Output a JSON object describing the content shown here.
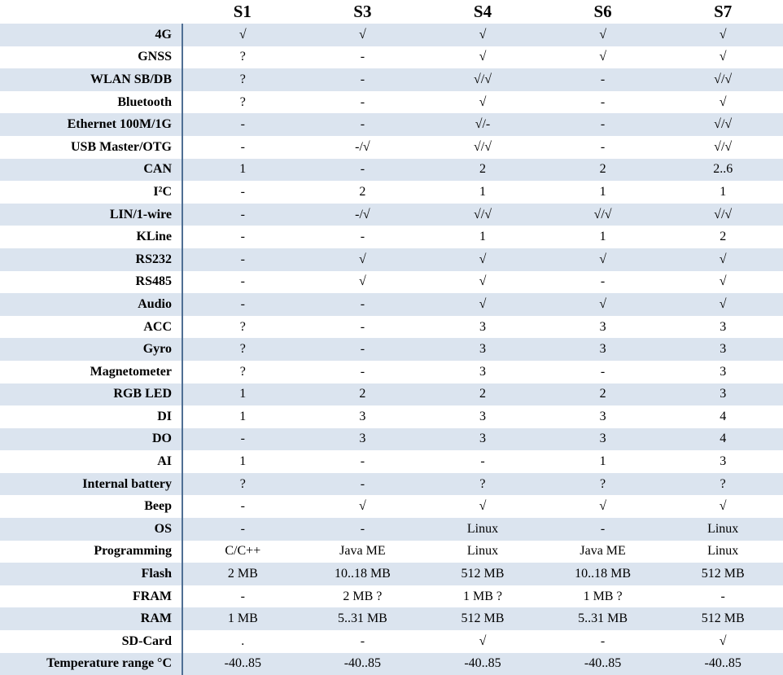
{
  "header": {
    "devices": [
      "S1",
      "S3",
      "S4",
      "S6",
      "S7"
    ]
  },
  "rows": [
    {
      "label": "4G",
      "values": [
        "√",
        "√",
        "√",
        "√",
        "√"
      ]
    },
    {
      "label": "GNSS",
      "values": [
        "?",
        "-",
        "√",
        "√",
        "√"
      ]
    },
    {
      "label": "WLAN SB/DB",
      "values": [
        "?",
        "-",
        "√/√",
        "-",
        "√/√"
      ]
    },
    {
      "label": "Bluetooth",
      "values": [
        "?",
        "-",
        "√",
        "-",
        "√"
      ]
    },
    {
      "label": "Ethernet 100M/1G",
      "values": [
        "-",
        "-",
        "√/-",
        "-",
        "√/√"
      ]
    },
    {
      "label": "USB Master/OTG",
      "values": [
        "-",
        "-/√",
        "√/√",
        "-",
        "√/√"
      ]
    },
    {
      "label": "CAN",
      "values": [
        "1",
        "-",
        "2",
        "2",
        "2..6"
      ]
    },
    {
      "label": "I²C",
      "values": [
        "-",
        "2",
        "1",
        "1",
        "1"
      ]
    },
    {
      "label": "LIN/1-wire",
      "values": [
        "-",
        "-/√",
        "√/√",
        "√/√",
        "√/√"
      ]
    },
    {
      "label": "KLine",
      "values": [
        "-",
        "-",
        "1",
        "1",
        "2"
      ]
    },
    {
      "label": "RS232",
      "values": [
        "-",
        "√",
        "√",
        "√",
        "√"
      ]
    },
    {
      "label": "RS485",
      "values": [
        "-",
        "√",
        "√",
        "-",
        "√"
      ]
    },
    {
      "label": "Audio",
      "values": [
        "-",
        "-",
        "√",
        "√",
        "√"
      ]
    },
    {
      "label": "ACC",
      "values": [
        "?",
        "-",
        "3",
        "3",
        "3"
      ]
    },
    {
      "label": "Gyro",
      "values": [
        "?",
        "-",
        "3",
        "3",
        "3"
      ]
    },
    {
      "label": "Magnetometer",
      "values": [
        "?",
        "-",
        "3",
        "-",
        "3"
      ]
    },
    {
      "label": "RGB LED",
      "values": [
        "1",
        "2",
        "2",
        "2",
        "3"
      ]
    },
    {
      "label": "DI",
      "values": [
        "1",
        "3",
        "3",
        "3",
        "4"
      ]
    },
    {
      "label": "DO",
      "values": [
        "-",
        "3",
        "3",
        "3",
        "4"
      ]
    },
    {
      "label": "AI",
      "values": [
        "1",
        "-",
        "-",
        "1",
        "3"
      ]
    },
    {
      "label": "Internal battery",
      "values": [
        "?",
        "-",
        "?",
        "?",
        "?"
      ]
    },
    {
      "label": "Beep",
      "values": [
        "-",
        "√",
        "√",
        "√",
        "√"
      ]
    },
    {
      "label": "OS",
      "values": [
        "-",
        "-",
        "Linux",
        "-",
        "Linux"
      ]
    },
    {
      "label": "Programming",
      "values": [
        "C/C++",
        "Java ME",
        "Linux",
        "Java ME",
        "Linux"
      ]
    },
    {
      "label": "Flash",
      "values": [
        "2 MB",
        "10..18 MB",
        "512 MB",
        "10..18 MB",
        "512 MB"
      ]
    },
    {
      "label": "FRAM",
      "values": [
        "-",
        "2 MB ?",
        "1 MB ?",
        "1 MB ?",
        "-"
      ]
    },
    {
      "label": "RAM",
      "values": [
        "1 MB",
        "5..31 MB",
        "512 MB",
        "5..31 MB",
        "512 MB"
      ]
    },
    {
      "label": "SD-Card",
      "values": [
        ".",
        "-",
        "√",
        "-",
        "√"
      ]
    },
    {
      "label": "Temperature range °C",
      "values": [
        "-40..85",
        "-40..85",
        "-40..85",
        "-40..85",
        "-40..85"
      ]
    }
  ],
  "colors": {
    "stripe": "#dbe4ef",
    "divider": "#4f6f94"
  }
}
